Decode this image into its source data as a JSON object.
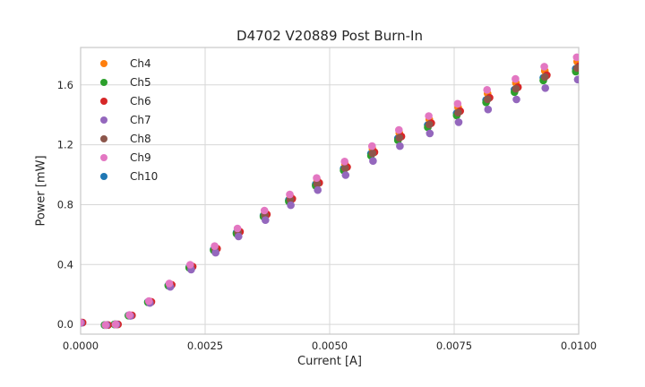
{
  "chart_data": {
    "type": "scatter",
    "title": "D4702 V20889 Post Burn-In",
    "xlabel": "Current [A]",
    "ylabel": "Power [mW]",
    "xlim": [
      0.0,
      0.01
    ],
    "ylim": [
      -0.065,
      1.85
    ],
    "grid": true,
    "legend_position": "upper-left",
    "x_ticks": {
      "values": [
        0.0,
        0.0025,
        0.005,
        0.0075,
        0.01
      ],
      "labels": [
        "0.0000",
        "0.0025",
        "0.0050",
        "0.0075",
        "0.0100"
      ]
    },
    "y_ticks": {
      "values": [
        0.0,
        0.4,
        0.8,
        1.2,
        1.6
      ],
      "labels": [
        "0.0",
        "0.4",
        "0.8",
        "1.2",
        "1.6"
      ]
    },
    "x": [
      0.0,
      0.00051,
      0.00071,
      0.00099,
      0.00138,
      0.00179,
      0.00221,
      0.0027,
      0.00316,
      0.0037,
      0.00421,
      0.00475,
      0.00531,
      0.00586,
      0.0064,
      0.007,
      0.00758,
      0.00817,
      0.00874,
      0.00932,
      0.00997
    ],
    "legend": [
      {
        "label": "Ch4",
        "color": "#ff7f0e"
      },
      {
        "label": "Ch5",
        "color": "#2ca02c"
      },
      {
        "label": "Ch6",
        "color": "#d62728"
      },
      {
        "label": "Ch7",
        "color": "#9467bd"
      },
      {
        "label": "Ch8",
        "color": "#8c564b"
      },
      {
        "label": "Ch9",
        "color": "#e377c2"
      },
      {
        "label": "Ch10",
        "color": "#1f77b4"
      }
    ],
    "series": [
      {
        "name": "Ch10",
        "color": "#1f77b4",
        "x_offset": -3e-05,
        "power": [
          0.012,
          -0.004,
          0.0,
          0.06,
          0.15,
          0.262,
          0.382,
          0.501,
          0.613,
          0.728,
          0.831,
          0.936,
          1.041,
          1.14,
          1.243,
          1.332,
          1.411,
          1.499,
          1.569,
          1.648,
          1.708
        ]
      },
      {
        "name": "Ch5",
        "color": "#2ca02c",
        "x_offset": -3e-05,
        "power": [
          0.012,
          -0.004,
          0.0,
          0.059,
          0.148,
          0.259,
          0.378,
          0.495,
          0.606,
          0.72,
          0.821,
          0.926,
          1.029,
          1.127,
          1.23,
          1.317,
          1.395,
          1.483,
          1.552,
          1.63,
          1.689
        ]
      },
      {
        "name": "Ch4",
        "color": "#ff7f0e",
        "x_offset": 0.0,
        "power": [
          0.012,
          -0.004,
          0.0,
          0.061,
          0.154,
          0.27,
          0.393,
          0.515,
          0.63,
          0.748,
          0.854,
          0.962,
          1.07,
          1.172,
          1.278,
          1.369,
          1.45,
          1.542,
          1.613,
          1.694,
          1.756
        ]
      },
      {
        "name": "Ch6",
        "color": "#d62728",
        "x_offset": 4e-05,
        "power": [
          0.012,
          -0.004,
          0.0,
          0.06,
          0.151,
          0.265,
          0.386,
          0.506,
          0.619,
          0.735,
          0.839,
          0.946,
          1.051,
          1.151,
          1.256,
          1.345,
          1.425,
          1.515,
          1.585,
          1.665,
          1.725
        ]
      },
      {
        "name": "Ch8",
        "color": "#8c564b",
        "x_offset": 0.0,
        "power": [
          0.012,
          -0.004,
          0.0,
          0.06,
          0.15,
          0.263,
          0.383,
          0.502,
          0.615,
          0.73,
          0.833,
          0.939,
          1.044,
          1.143,
          1.247,
          1.336,
          1.415,
          1.504,
          1.574,
          1.653,
          1.713
        ]
      },
      {
        "name": "Ch7",
        "color": "#9467bd",
        "x_offset": 1e-05,
        "power": [
          0.011,
          -0.004,
          0.0,
          0.057,
          0.143,
          0.251,
          0.366,
          0.479,
          0.587,
          0.697,
          0.796,
          0.897,
          0.997,
          1.092,
          1.191,
          1.276,
          1.351,
          1.436,
          1.503,
          1.579,
          1.636
        ]
      },
      {
        "name": "Ch9",
        "color": "#e377c2",
        "x_offset": -1e-05,
        "power": [
          0.013,
          -0.004,
          0.0,
          0.063,
          0.156,
          0.274,
          0.399,
          0.523,
          0.641,
          0.761,
          0.868,
          0.978,
          1.088,
          1.191,
          1.299,
          1.392,
          1.474,
          1.567,
          1.64,
          1.722,
          1.785
        ]
      }
    ],
    "style": {
      "grid_color": "#d7d7d7",
      "spine_color": "#c9c9c9",
      "text_color": "#262626",
      "marker_radius": 4.3
    }
  }
}
